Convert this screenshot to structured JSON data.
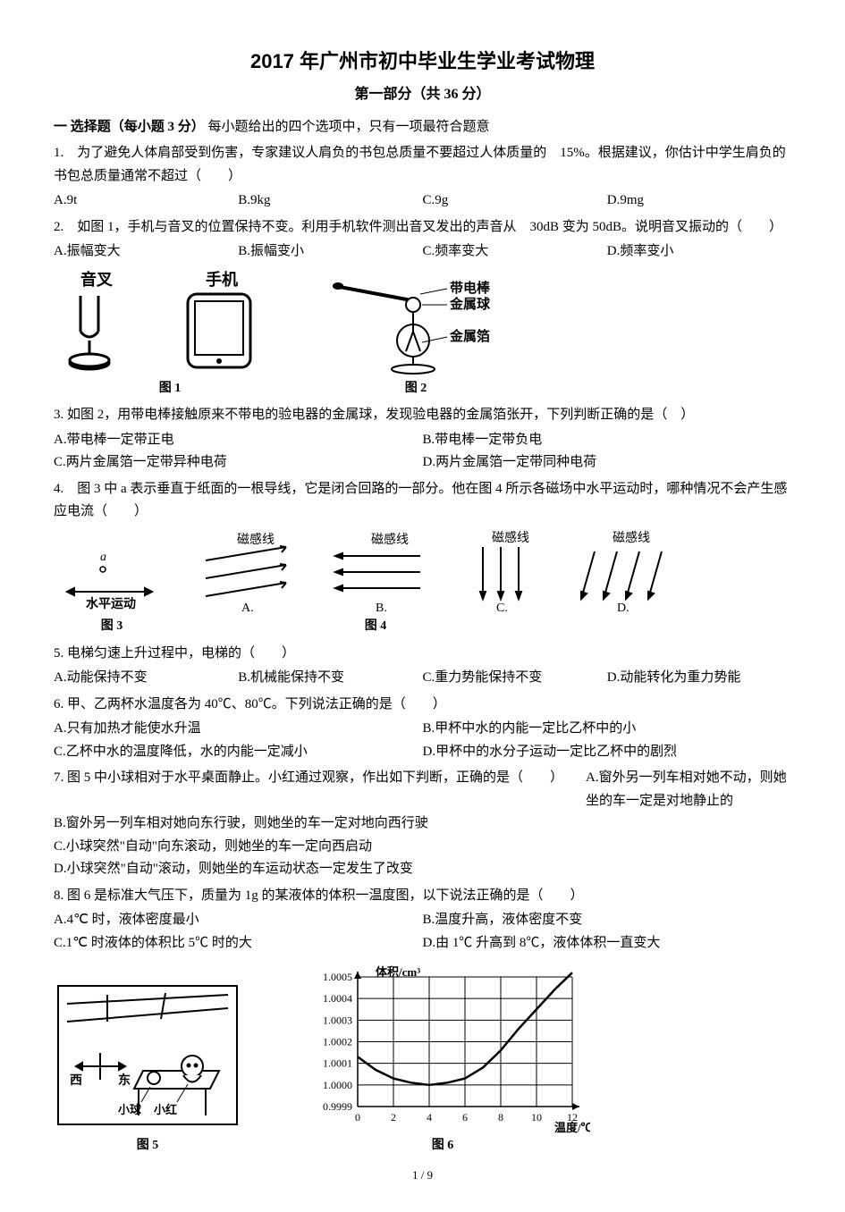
{
  "page": {
    "title": "2017 年广州市初中毕业生学业考试物理",
    "subtitle": "第一部分（共 36 分）",
    "section_head": "一 选择题（每小题 3 分）",
    "section_note": "每小题给出的四个选项中，只有一项最符合题意",
    "footer": "1 / 9"
  },
  "q1": {
    "text": "1.　为了避免人体肩部受到伤害，专家建议人肩负的书包总质量不要超过人体质量的　15%。根据建议，你估计中学生肩负的书包总质量通常不超过（　　）",
    "A": "A.9t",
    "B": "B.9kg",
    "C": "C.9g",
    "D": "D.9mg"
  },
  "q2": {
    "text": "2.　如图 1，手机与音叉的位置保持不变。利用手机软件测出音叉发出的声音从　30dB 变为 50dB。说明音叉振动的（　　）",
    "A": "A.振幅变大",
    "B": "B.振幅变小",
    "C": "C.频率变大",
    "D": "D.频率变小"
  },
  "fig1": {
    "left_label": "音叉",
    "right_label": "手机",
    "caption": "图 1"
  },
  "fig2": {
    "l1": "带电棒",
    "l2": "金属球",
    "l3": "金属箔",
    "caption": "图 2"
  },
  "q3": {
    "text": "3. 如图 2，用带电棒接触原来不带电的验电器的金属球，发现验电器的金属箔张开，下列判断正确的是（　）",
    "A": "A.带电棒一定带正电",
    "B": "B.带电棒一定带负电",
    "C": "C.两片金属箔一定带异种电荷",
    "D": "D.两片金属箔一定带同种电荷"
  },
  "q4": {
    "text": "4.　图 3 中 a 表示垂直于纸面的一根导线，它是闭合回路的一部分。他在图 4 所示各磁场中水平运动时，哪种情况不会产生感应电流（　　）",
    "fig3": {
      "a": "a",
      "arrow": "水平运动",
      "caption": "图 3"
    },
    "fig4": {
      "label": "磁感线",
      "A": "A.",
      "B": "B.",
      "C": "C.",
      "D": "D.",
      "caption": "图 4"
    }
  },
  "q5": {
    "text": "5. 电梯匀速上升过程中，电梯的（　　）",
    "A": "A.动能保持不变",
    "B": "B.机械能保持不变",
    "C": "C.重力势能保持不变",
    "D": "D.动能转化为重力势能"
  },
  "q6": {
    "text": "6. 甲、乙两杯水温度各为 40℃、80℃。下列说法正确的是（　　）",
    "A": "A.只有加热才能使水升温",
    "B": "B.甲杯中水的内能一定比乙杯中的小",
    "C": "C.乙杯中水的温度降低，水的内能一定减小",
    "D": "D.甲杯中的水分子运动一定比乙杯中的剧烈"
  },
  "q7": {
    "text": "7. 图 5 中小球相对于水平桌面静止。小红通过观察，作出如下判断，正确的是（　　）",
    "A": "A.窗外另一列车相对她不动，则她坐的车一定是对地静止的",
    "B": "B.窗外另一列车相对她向东行驶，则她坐的车一定对地向西行驶",
    "C": "C.小球突然\"自动\"向东滚动，则她坐的车一定向西启动",
    "D": "D.小球突然\"自动\"滚动，则她坐的车运动状态一定发生了改变"
  },
  "q8": {
    "text": "8. 图 6 是标准大气压下，质量为 1g 的某液体的体积一温度图，以下说法正确的是（　　）",
    "A": "A.4℃ 时，液体密度最小",
    "B": "B.温度升高，液体密度不变",
    "C": "C.1℃ 时液体的体积比 5℃ 时的大",
    "D": "D.由 1℃ 升高到 8℃，液体体积一直变大"
  },
  "fig5": {
    "west": "西",
    "east": "东",
    "ball": "小球",
    "girl": "小红",
    "caption": "图 5"
  },
  "fig6": {
    "type": "line",
    "ylabel": "体积/cm³",
    "xlabel": "温度/℃",
    "xticks": [
      0,
      2,
      4,
      6,
      8,
      10,
      12
    ],
    "yticks": [
      "0.9999",
      "1.0000",
      "1.0001",
      "1.0002",
      "1.0003",
      "1.0004",
      "1.0005"
    ],
    "points_x": [
      0,
      1,
      2,
      3,
      4,
      5,
      6,
      7,
      8,
      9,
      10,
      11,
      12
    ],
    "points_y": [
      1.00013,
      1.00007,
      1.00003,
      1.00001,
      1.0,
      1.00001,
      1.00003,
      1.00008,
      1.00016,
      1.00026,
      1.00035,
      1.00044,
      1.00052
    ],
    "ylim": [
      0.9999,
      1.0005
    ],
    "xlim": [
      0,
      12
    ],
    "stroke": "#000000",
    "grid": "#000000",
    "caption": "图 6"
  }
}
